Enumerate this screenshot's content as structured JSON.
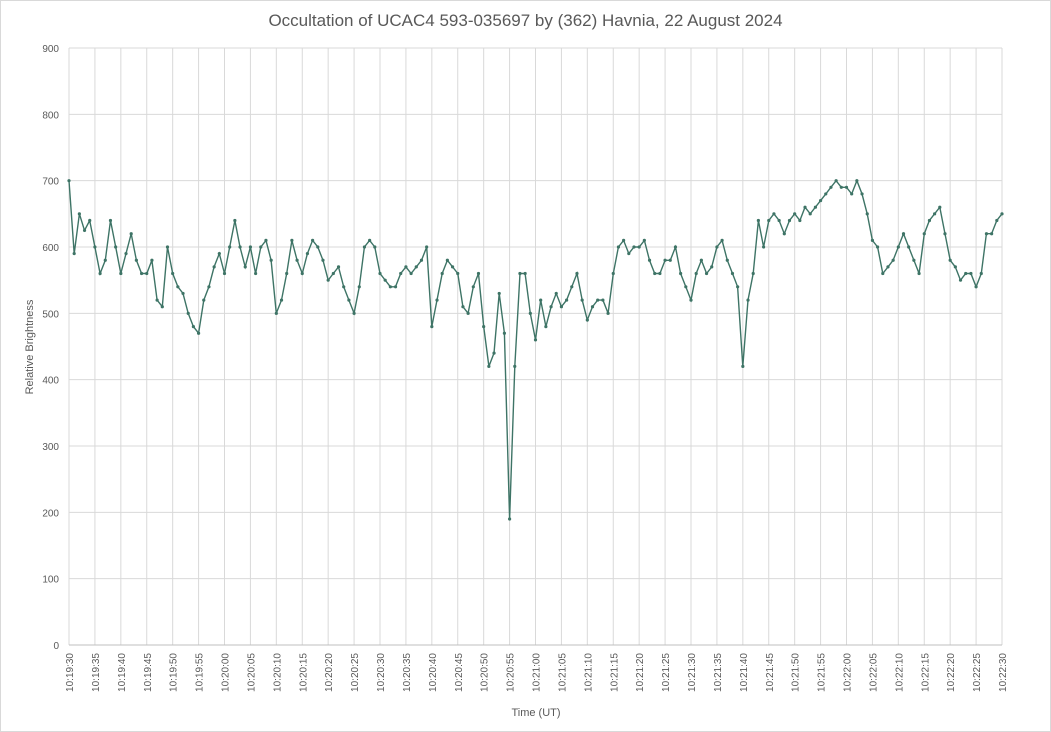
{
  "chart_data": {
    "type": "line",
    "title": "Occultation of UCAC4 593-035697 by (362) Havnia, 22 August 2024",
    "xlabel": "Time (UT)",
    "ylabel": "Relative Brightness",
    "ylim": [
      0,
      900
    ],
    "yticks": [
      "0",
      "100",
      "200",
      "300",
      "400",
      "500",
      "600",
      "700",
      "800",
      "900"
    ],
    "xlim": [
      "10:19:30",
      "10:22:30"
    ],
    "xticks": [
      "10:19:30",
      "10:19:35",
      "10:19:40",
      "10:19:45",
      "10:19:50",
      "10:19:55",
      "10:20:00",
      "10:20:05",
      "10:20:10",
      "10:20:15",
      "10:20:20",
      "10:20:25",
      "10:20:30",
      "10:20:35",
      "10:20:40",
      "10:20:45",
      "10:20:50",
      "10:20:55",
      "10:21:00",
      "10:21:05",
      "10:21:10",
      "10:21:15",
      "10:21:20",
      "10:21:25",
      "10:21:30",
      "10:21:35",
      "10:21:40",
      "10:21:45",
      "10:21:50",
      "10:21:55",
      "10:22:00",
      "10:22:05",
      "10:22:10",
      "10:22:15",
      "10:22:20",
      "10:22:25",
      "10:22:30"
    ],
    "grid": true,
    "legend": "none",
    "series": [
      {
        "color": "#3e7466",
        "x": [
          "10:19:30",
          "10:19:31",
          "10:19:32",
          "10:19:33",
          "10:19:34",
          "10:19:35",
          "10:19:36",
          "10:19:37",
          "10:19:38",
          "10:19:39",
          "10:19:40",
          "10:19:41",
          "10:19:42",
          "10:19:43",
          "10:19:44",
          "10:19:45",
          "10:19:46",
          "10:19:47",
          "10:19:48",
          "10:19:49",
          "10:19:50",
          "10:19:51",
          "10:19:52",
          "10:19:53",
          "10:19:54",
          "10:19:55",
          "10:19:56",
          "10:19:57",
          "10:19:58",
          "10:19:59",
          "10:20:00",
          "10:20:01",
          "10:20:02",
          "10:20:03",
          "10:20:04",
          "10:20:05",
          "10:20:06",
          "10:20:07",
          "10:20:08",
          "10:20:09",
          "10:20:10",
          "10:20:11",
          "10:20:12",
          "10:20:13",
          "10:20:14",
          "10:20:15",
          "10:20:16",
          "10:20:17",
          "10:20:18",
          "10:20:19",
          "10:20:20",
          "10:20:21",
          "10:20:22",
          "10:20:23",
          "10:20:24",
          "10:20:25",
          "10:20:26",
          "10:20:27",
          "10:20:28",
          "10:20:29",
          "10:20:30",
          "10:20:31",
          "10:20:32",
          "10:20:33",
          "10:20:34",
          "10:20:35",
          "10:20:36",
          "10:20:37",
          "10:20:38",
          "10:20:39",
          "10:20:40",
          "10:20:41",
          "10:20:42",
          "10:20:43",
          "10:20:44",
          "10:20:45",
          "10:20:46",
          "10:20:47",
          "10:20:48",
          "10:20:49",
          "10:20:50",
          "10:20:51",
          "10:20:52",
          "10:20:53",
          "10:20:54",
          "10:20:55",
          "10:20:56",
          "10:20:57",
          "10:20:58",
          "10:20:59",
          "10:21:00",
          "10:21:01",
          "10:21:02",
          "10:21:03",
          "10:21:04",
          "10:21:05",
          "10:21:06",
          "10:21:07",
          "10:21:08",
          "10:21:09",
          "10:21:10",
          "10:21:11",
          "10:21:12",
          "10:21:13",
          "10:21:14",
          "10:21:15",
          "10:21:16",
          "10:21:17",
          "10:21:18",
          "10:21:19",
          "10:21:20",
          "10:21:21",
          "10:21:22",
          "10:21:23",
          "10:21:24",
          "10:21:25",
          "10:21:26",
          "10:21:27",
          "10:21:28",
          "10:21:29",
          "10:21:30",
          "10:21:31",
          "10:21:32",
          "10:21:33",
          "10:21:34",
          "10:21:35",
          "10:21:36",
          "10:21:37",
          "10:21:38",
          "10:21:39",
          "10:21:40",
          "10:21:41",
          "10:21:42",
          "10:21:43",
          "10:21:44",
          "10:21:45",
          "10:21:46",
          "10:21:47",
          "10:21:48",
          "10:21:49",
          "10:21:50",
          "10:21:51",
          "10:21:52",
          "10:21:53",
          "10:21:54",
          "10:21:55",
          "10:21:56",
          "10:21:57",
          "10:21:58",
          "10:21:59",
          "10:22:00",
          "10:22:01",
          "10:22:02",
          "10:22:03",
          "10:22:04",
          "10:22:05",
          "10:22:06",
          "10:22:07",
          "10:22:08",
          "10:22:09",
          "10:22:10",
          "10:22:11",
          "10:22:12",
          "10:22:13",
          "10:22:14",
          "10:22:15",
          "10:22:16",
          "10:22:17",
          "10:22:18",
          "10:22:19",
          "10:22:20",
          "10:22:21",
          "10:22:22",
          "10:22:23",
          "10:22:24",
          "10:22:25",
          "10:22:26",
          "10:22:27",
          "10:22:28",
          "10:22:29",
          "10:22:30"
        ],
        "y": [
          700,
          590,
          650,
          625,
          640,
          600,
          560,
          580,
          640,
          600,
          560,
          590,
          620,
          580,
          560,
          560,
          580,
          520,
          510,
          600,
          560,
          540,
          530,
          500,
          480,
          470,
          520,
          540,
          570,
          590,
          560,
          600,
          640,
          600,
          570,
          600,
          560,
          600,
          610,
          580,
          500,
          520,
          560,
          610,
          580,
          560,
          590,
          610,
          600,
          580,
          550,
          560,
          570,
          540,
          520,
          500,
          540,
          600,
          610,
          600,
          560,
          550,
          540,
          540,
          560,
          570,
          560,
          570,
          580,
          600,
          480,
          520,
          560,
          580,
          570,
          560,
          510,
          500,
          540,
          560,
          480,
          420,
          440,
          530,
          470,
          190,
          420,
          560,
          560,
          500,
          460,
          520,
          480,
          510,
          530,
          510,
          520,
          540,
          560,
          520,
          490,
          510,
          520,
          520,
          500,
          560,
          600,
          610,
          590,
          600,
          600,
          610,
          580,
          560,
          560,
          580,
          580,
          600,
          560,
          540,
          520,
          560,
          580,
          560,
          570,
          600,
          610,
          580,
          560,
          540,
          420,
          520,
          560,
          640,
          600,
          640,
          650,
          640,
          620,
          640,
          650,
          640,
          660,
          650,
          660,
          670,
          680,
          690,
          700,
          690,
          690,
          680,
          700,
          680,
          650,
          610,
          600,
          560,
          570,
          580,
          600,
          620,
          600,
          580,
          560,
          620,
          640,
          650,
          660,
          620,
          580,
          570,
          550,
          560,
          560,
          540,
          560,
          620,
          620,
          640,
          650
        ]
      }
    ]
  }
}
